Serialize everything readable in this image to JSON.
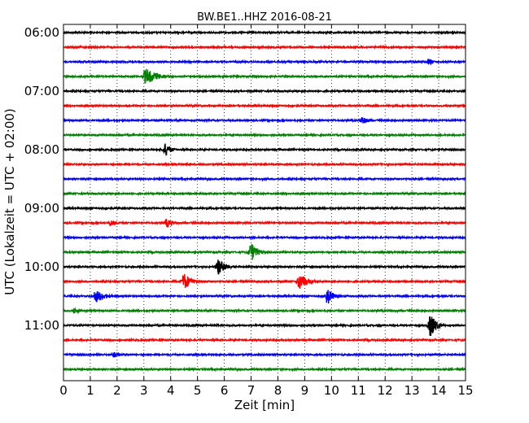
{
  "chart_data": {
    "type": "line",
    "chart_kind": "helicorder",
    "title": "BW.BE1..HHZ 2016-08-21",
    "xlabel": "Zeit  [min]",
    "ylabel": "UTC (Lokalzeit = UTC + 02:00)",
    "xlim": [
      0,
      15
    ],
    "x_ticks": [
      "0",
      "1",
      "2",
      "3",
      "4",
      "5",
      "6",
      "7",
      "8",
      "9",
      "10",
      "11",
      "12",
      "13",
      "14",
      "15"
    ],
    "y_ticks": [
      "06:00",
      "07:00",
      "08:00",
      "09:00",
      "10:00",
      "11:00"
    ],
    "grid": "vertical dotted",
    "trace_interval_min": 15,
    "trace_colors": [
      "#000000",
      "#ff0000",
      "#0000ff",
      "#008000"
    ],
    "traces": [
      {
        "start": "06:00",
        "color": "#000000",
        "events": []
      },
      {
        "start": "06:15",
        "color": "#ff0000",
        "events": []
      },
      {
        "start": "06:30",
        "color": "#0000ff",
        "events": [
          {
            "t": 13.6,
            "amp": 6,
            "dur": 0.5
          }
        ]
      },
      {
        "start": "06:45",
        "color": "#008000",
        "events": [
          {
            "t": 3.0,
            "amp": 12,
            "dur": 1.4
          }
        ]
      },
      {
        "start": "07:00",
        "color": "#000000",
        "events": []
      },
      {
        "start": "07:15",
        "color": "#ff0000",
        "events": []
      },
      {
        "start": "07:30",
        "color": "#0000ff",
        "events": [
          {
            "t": 11.1,
            "amp": 8,
            "dur": 0.6
          }
        ]
      },
      {
        "start": "07:45",
        "color": "#008000",
        "events": []
      },
      {
        "start": "08:00",
        "color": "#000000",
        "events": [
          {
            "t": 1.5,
            "amp": 2,
            "dur": 0.8
          },
          {
            "t": 3.75,
            "amp": 12,
            "dur": 0.6
          }
        ]
      },
      {
        "start": "08:15",
        "color": "#ff0000",
        "events": []
      },
      {
        "start": "08:30",
        "color": "#0000ff",
        "events": []
      },
      {
        "start": "08:45",
        "color": "#008000",
        "events": []
      },
      {
        "start": "09:00",
        "color": "#000000",
        "events": [
          {
            "t": 1.2,
            "amp": 2,
            "dur": 0.3
          },
          {
            "t": 7.5,
            "amp": 2,
            "dur": 0.4
          },
          {
            "t": 14.5,
            "amp": 2,
            "dur": 0.3
          }
        ]
      },
      {
        "start": "09:15",
        "color": "#ff0000",
        "events": [
          {
            "t": 1.7,
            "amp": 5,
            "dur": 0.7
          },
          {
            "t": 3.8,
            "amp": 8,
            "dur": 0.7
          }
        ]
      },
      {
        "start": "09:30",
        "color": "#0000ff",
        "events": []
      },
      {
        "start": "09:45",
        "color": "#008000",
        "events": [
          {
            "t": 6.95,
            "amp": 16,
            "dur": 0.7
          }
        ]
      },
      {
        "start": "10:00",
        "color": "#000000",
        "events": [
          {
            "t": 5.7,
            "amp": 13,
            "dur": 0.9
          }
        ]
      },
      {
        "start": "10:15",
        "color": "#ff0000",
        "events": [
          {
            "t": 4.45,
            "amp": 14,
            "dur": 0.8
          },
          {
            "t": 8.75,
            "amp": 14,
            "dur": 0.9
          }
        ]
      },
      {
        "start": "10:30",
        "color": "#0000ff",
        "events": [
          {
            "t": 1.15,
            "amp": 10,
            "dur": 1.1
          },
          {
            "t": 9.8,
            "amp": 15,
            "dur": 0.6
          }
        ]
      },
      {
        "start": "10:45",
        "color": "#008000",
        "events": [
          {
            "t": 0.35,
            "amp": 5,
            "dur": 0.8
          }
        ]
      },
      {
        "start": "11:00",
        "color": "#000000",
        "events": [
          {
            "t": 5.7,
            "amp": 4,
            "dur": 0.2
          },
          {
            "t": 13.65,
            "amp": 22,
            "dur": 0.6
          }
        ]
      },
      {
        "start": "11:15",
        "color": "#ff0000",
        "events": []
      },
      {
        "start": "11:30",
        "color": "#0000ff",
        "events": [
          {
            "t": 1.8,
            "amp": 4,
            "dur": 1.3
          }
        ]
      },
      {
        "start": "11:45",
        "color": "#008000",
        "events": []
      }
    ]
  }
}
